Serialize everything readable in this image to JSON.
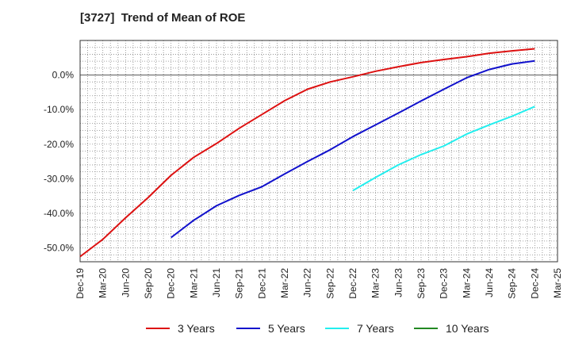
{
  "chart_data": {
    "type": "line",
    "title": "[3727]  Trend of Mean of ROE",
    "xlabel": "",
    "ylabel": "",
    "x_ticks": [
      "Dec-19",
      "Mar-20",
      "Jun-20",
      "Sep-20",
      "Dec-20",
      "Mar-21",
      "Jun-21",
      "Sep-21",
      "Dec-21",
      "Mar-22",
      "Jun-22",
      "Sep-22",
      "Dec-22",
      "Mar-23",
      "Jun-23",
      "Sep-23",
      "Dec-23",
      "Mar-24",
      "Jun-24",
      "Sep-24",
      "Dec-24",
      "Mar-25"
    ],
    "y_ticks": [
      0,
      -10,
      -20,
      -30,
      -40,
      -50
    ],
    "y_tick_labels": [
      "0.0%",
      "-10.0%",
      "-20.0%",
      "-30.0%",
      "-40.0%",
      "-50.0%"
    ],
    "ylim": [
      -54,
      10
    ],
    "grid": true,
    "legend_position": "bottom",
    "series": [
      {
        "name": "3 Years",
        "color": "#dd1111",
        "start_index": 0,
        "values": [
          -52.5,
          -47.5,
          -41.3,
          -35.4,
          -29.0,
          -23.8,
          -19.8,
          -15.4,
          -11.4,
          -7.4,
          -4.1,
          -2.0,
          -0.5,
          1.1,
          2.4,
          3.6,
          4.5,
          5.3,
          6.3,
          7.0,
          7.6
        ]
      },
      {
        "name": "5 Years",
        "color": "#1111cc",
        "start_index": 4,
        "values": [
          -47.0,
          -42.0,
          -37.8,
          -34.8,
          -32.3,
          -28.6,
          -25.0,
          -21.6,
          -17.8,
          -14.4,
          -11.0,
          -7.5,
          -4.1,
          -0.8,
          1.6,
          3.2,
          4.1
        ]
      },
      {
        "name": "7 Years",
        "color": "#22eeee",
        "start_index": 12,
        "values": [
          -33.4,
          -29.6,
          -26.0,
          -23.0,
          -20.5,
          -17.1,
          -14.4,
          -11.9,
          -9.1
        ]
      },
      {
        "name": "10 Years",
        "color": "#228822",
        "start_index": 0,
        "values": []
      }
    ]
  }
}
